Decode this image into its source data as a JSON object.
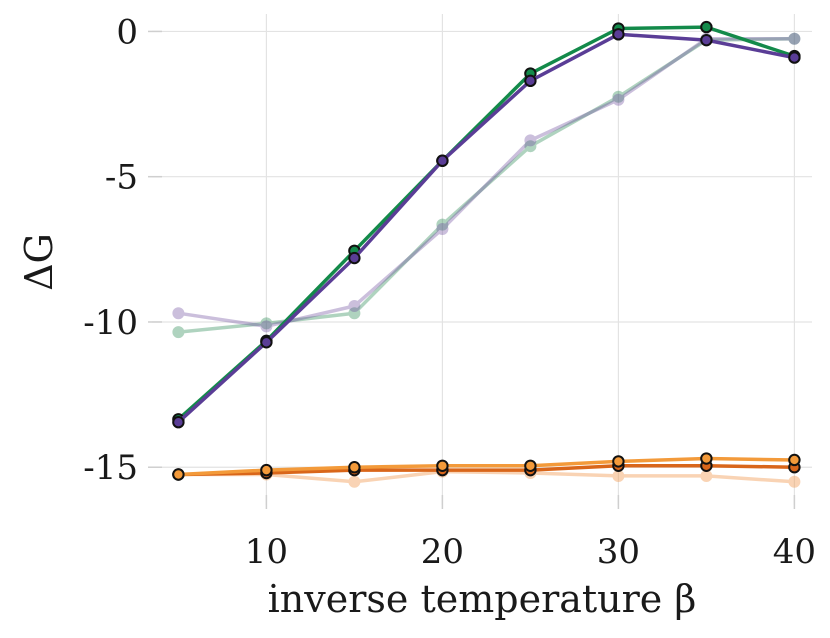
{
  "chart_data": {
    "type": "line",
    "title": "",
    "xlabel": "inverse temperature β",
    "ylabel": "ΔG",
    "xlim": [
      3.5,
      41
    ],
    "ylim": [
      -16.3,
      0.6
    ],
    "xticks": [
      10,
      20,
      30,
      40
    ],
    "yticks": [
      0,
      -5,
      -10,
      -15
    ],
    "grid": true,
    "legend": "none",
    "x": [
      5,
      10,
      15,
      20,
      25,
      30,
      35,
      40
    ],
    "series": [
      {
        "name": "green-faint",
        "color": "#1e8449",
        "opacity": 0.35,
        "markers": "faint",
        "values": [
          -10.35,
          -10.05,
          -9.7,
          -6.65,
          -3.95,
          -2.25,
          -0.3,
          -0.25
        ]
      },
      {
        "name": "purple-faint",
        "color": "#6c4a9e",
        "opacity": 0.35,
        "markers": "faint",
        "values": [
          -9.7,
          -10.15,
          -9.45,
          -6.8,
          -3.75,
          -2.35,
          -0.25,
          -0.25
        ]
      },
      {
        "name": "green",
        "color": "#138a4a",
        "opacity": 1,
        "markers": "outlined",
        "values": [
          -13.35,
          -10.65,
          -7.55,
          -4.45,
          -1.45,
          0.1,
          0.15,
          -0.85
        ]
      },
      {
        "name": "purple",
        "color": "#5a3d96",
        "opacity": 1,
        "markers": "outlined",
        "values": [
          -13.45,
          -10.7,
          -7.8,
          -4.45,
          -1.7,
          -0.1,
          -0.3,
          -0.9
        ]
      },
      {
        "name": "orange-faint",
        "color": "#f2a05a",
        "opacity": 0.45,
        "markers": "faint",
        "values": [
          -15.25,
          -15.25,
          -15.5,
          -15.15,
          -15.2,
          -15.3,
          -15.3,
          -15.5
        ]
      },
      {
        "name": "orange-dark",
        "color": "#d9661a",
        "opacity": 1,
        "markers": "outlined",
        "values": [
          -15.25,
          -15.2,
          -15.1,
          -15.1,
          -15.1,
          -14.95,
          -14.95,
          -15.0
        ]
      },
      {
        "name": "orange",
        "color": "#f39a3a",
        "opacity": 1,
        "markers": "outlined",
        "values": [
          -15.25,
          -15.1,
          -15.0,
          -14.95,
          -14.95,
          -14.8,
          -14.7,
          -14.75
        ]
      }
    ]
  }
}
